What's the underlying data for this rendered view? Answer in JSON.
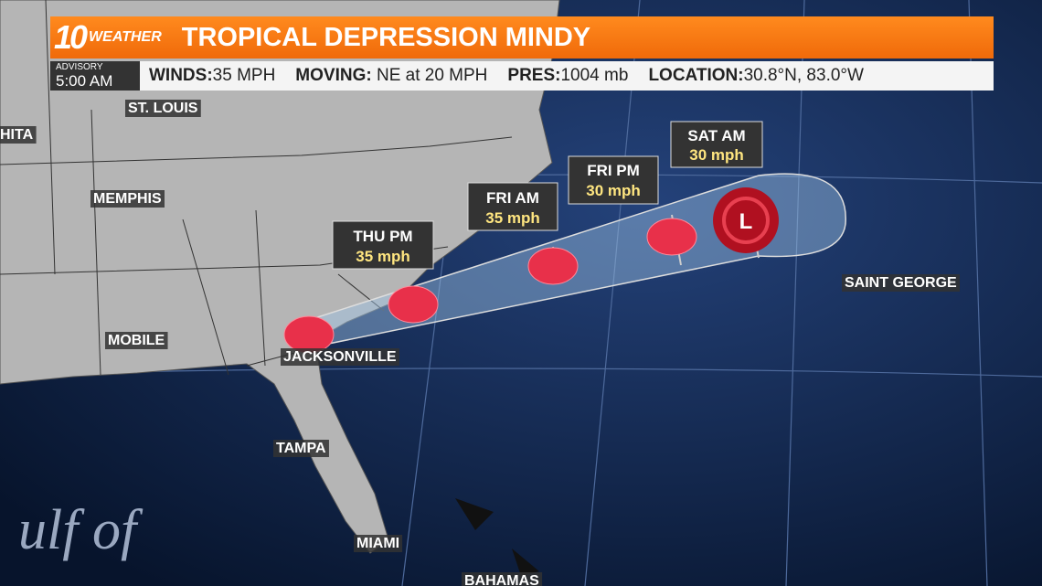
{
  "header": {
    "logo_number": "10",
    "logo_text": "WEATHER",
    "title": "TROPICAL DEPRESSION MINDY"
  },
  "advisory": {
    "label": "ADVISORY",
    "time": "5:00 AM",
    "fields": [
      {
        "label": "WINDS:",
        "value": "35 MPH"
      },
      {
        "label": "MOVING:",
        "value": "NE at 20 MPH"
      },
      {
        "label": "PRES:",
        "value": "1004 mb"
      },
      {
        "label": "LOCATION:",
        "value": "30.8°N, 83.0°W"
      }
    ]
  },
  "forecast_points": [
    {
      "time": "THU PM",
      "wind": "35 mph"
    },
    {
      "time": "FRI AM",
      "wind": "35 mph"
    },
    {
      "time": "FRI PM",
      "wind": "30 mph"
    },
    {
      "time": "SAT AM",
      "wind": "30 mph"
    }
  ],
  "storm_symbol": "L",
  "places": [
    "ST. LOUIS",
    "HITA",
    "MEMPHIS",
    "MOBILE",
    "JACKSONVILLE",
    "TAMPA",
    "MIAMI",
    "SAINT GEORGE",
    "BAHAMAS",
    "ulf of"
  ]
}
